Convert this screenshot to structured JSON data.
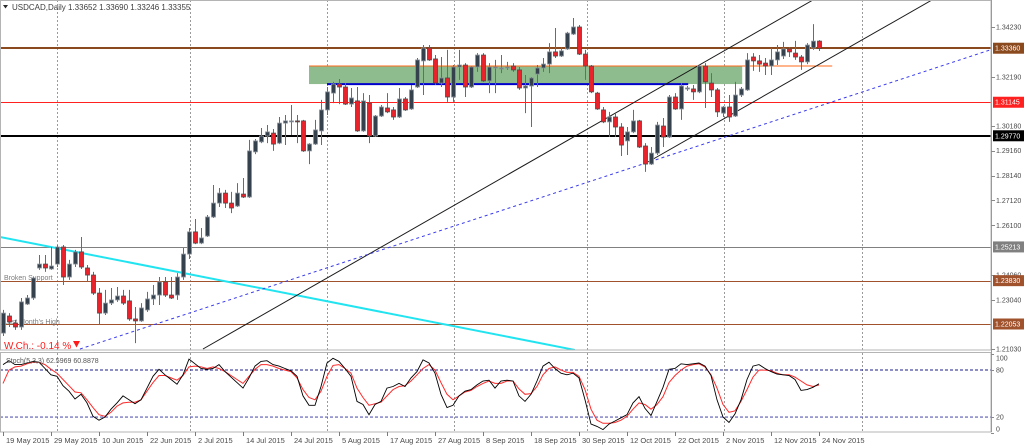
{
  "header": {
    "menu_icon": "triangle-down-icon",
    "symbol": "USDCAD,Daily",
    "ohlc": "1.33652 1.33690 1.33246 1.33355"
  },
  "annotations": {
    "broken_support": "Broken Support",
    "last_month_high": "Last Month's High",
    "weekly_change": "W.Ch.: -0.14 %",
    "weekly_change_icon": "triangle-down-icon"
  },
  "indicator": {
    "label": "Stoch(5,3,3) 62.5969 60.8878"
  },
  "colors": {
    "bull_body": "#36414e",
    "bull_outline": "#8a949e",
    "bear_body": "#e8232b",
    "bear_outline": "#4a4a4a",
    "wick": "#6b6b6b",
    "stoch_k": "#000000",
    "stoch_d": "#ff2a2a",
    "stoch_level_80": "#1c1c8c",
    "stoch_level_20": "#5a5ab4",
    "weekly_change": "#ff1a1a"
  },
  "chart_data": {
    "type": "candlestick",
    "title": "USDCAD,Daily",
    "symbol": "USDCAD",
    "timeframe": "Daily",
    "last_ohlc": {
      "open": 1.33652,
      "high": 1.3369,
      "low": 1.33246,
      "close": 1.33355
    },
    "ylim": [
      1.2099,
      1.3534
    ],
    "grid": "vertical dashed only",
    "x_tick_labels": [
      "19 May 2015",
      "29 May 2015",
      "10 Jun 2015",
      "22 Jun 2015",
      "2 Jul 2015",
      "14 Jul 2015",
      "24 Jul 2015",
      "5 Aug 2015",
      "17 Aug 2015",
      "27 Aug 2015",
      "8 Sep 2015",
      "18 Sep 2015",
      "30 Sep 2015",
      "12 Oct 2015",
      "22 Oct 2015",
      "2 Nov 2015",
      "12 Nov 2015",
      "24 Nov 2015"
    ],
    "y_tick_labels": [
      "1.34230",
      "1.32190",
      "1.30180",
      "1.29160",
      "1.28140",
      "1.27120",
      "1.26100",
      "1.24060",
      "1.23040",
      "1.21030"
    ],
    "candle_fields": [
      "open",
      "high",
      "low",
      "close"
    ],
    "candles": [
      [
        1.2168,
        1.2263,
        1.2156,
        1.225
      ],
      [
        1.2238,
        1.225,
        1.2193,
        1.2214
      ],
      [
        1.2209,
        1.2222,
        1.2181,
        1.2193
      ],
      [
        1.2193,
        1.2312,
        1.2181,
        1.2296
      ],
      [
        1.2287,
        1.2324,
        1.2283,
        1.2312
      ],
      [
        1.2312,
        1.2398,
        1.2304,
        1.2394
      ],
      [
        1.2435,
        1.2488,
        1.2427,
        1.2451
      ],
      [
        1.2451,
        1.2488,
        1.2419,
        1.2435
      ],
      [
        1.2431,
        1.2521,
        1.2427,
        1.2443
      ],
      [
        1.2451,
        1.2529,
        1.2439,
        1.2521
      ],
      [
        1.2521,
        1.2529,
        1.2365,
        1.2398
      ],
      [
        1.2398,
        1.2468,
        1.2386,
        1.2451
      ],
      [
        1.2451,
        1.2509,
        1.2439,
        1.2501
      ],
      [
        1.2501,
        1.2562,
        1.2431,
        1.2439
      ],
      [
        1.2435,
        1.2447,
        1.2378,
        1.2406
      ],
      [
        1.2406,
        1.2419,
        1.2324,
        1.2332
      ],
      [
        1.2332,
        1.2353,
        1.2201,
        1.225
      ],
      [
        1.225,
        1.2345,
        1.2242,
        1.2291
      ],
      [
        1.2291,
        1.2353,
        1.2283,
        1.2304
      ],
      [
        1.2304,
        1.2357,
        1.2296,
        1.232
      ],
      [
        1.232,
        1.2345,
        1.2283,
        1.2291
      ],
      [
        1.23,
        1.2345,
        1.2218,
        1.2226
      ],
      [
        1.2226,
        1.2275,
        1.2127,
        1.2218
      ],
      [
        1.2218,
        1.2291,
        1.2214,
        1.2271
      ],
      [
        1.2263,
        1.2337,
        1.2255,
        1.2308
      ],
      [
        1.2308,
        1.2365,
        1.2283,
        1.2324
      ],
      [
        1.2324,
        1.2398,
        1.2283,
        1.2378
      ],
      [
        1.2378,
        1.2398,
        1.2316,
        1.2324
      ],
      [
        1.2324,
        1.2398,
        1.2308,
        1.2312
      ],
      [
        1.2324,
        1.2414,
        1.2304,
        1.2398
      ],
      [
        1.2398,
        1.2517,
        1.2386,
        1.2492
      ],
      [
        1.2492,
        1.2599,
        1.2472,
        1.2583
      ],
      [
        1.2583,
        1.2636,
        1.2533,
        1.2537
      ],
      [
        1.2537,
        1.2599,
        1.2533,
        1.2558
      ],
      [
        1.2566,
        1.2652,
        1.2562,
        1.2644
      ],
      [
        1.2644,
        1.2775,
        1.264,
        1.2701
      ],
      [
        1.2701,
        1.2763,
        1.2685,
        1.2742
      ],
      [
        1.2742,
        1.2755,
        1.2681,
        1.2701
      ],
      [
        1.2701,
        1.2747,
        1.266,
        1.2681
      ],
      [
        1.2689,
        1.2783,
        1.2685,
        1.2742
      ],
      [
        1.2738,
        1.2804,
        1.2722,
        1.2726
      ],
      [
        1.2726,
        1.296,
        1.2722,
        1.2915
      ],
      [
        1.2911,
        1.2964,
        1.2902,
        1.2956
      ],
      [
        1.2952,
        1.3009,
        1.2947,
        1.2976
      ],
      [
        1.2976,
        1.3021,
        1.2947,
        1.2993
      ],
      [
        1.2988,
        1.3005,
        1.2915,
        1.2943
      ],
      [
        1.2947,
        1.3054,
        1.2943,
        1.3029
      ],
      [
        1.3029,
        1.3062,
        1.2939,
        1.3038
      ],
      [
        1.3034,
        1.3103,
        1.298,
        1.3038
      ],
      [
        1.3038,
        1.3062,
        1.2947,
        1.3034
      ],
      [
        1.3038,
        1.3042,
        1.2911,
        1.2915
      ],
      [
        1.2915,
        1.2947,
        1.2861,
        1.2943
      ],
      [
        1.2943,
        1.3042,
        1.2939,
        1.3001
      ],
      [
        1.2997,
        1.3124,
        1.2939,
        1.3083
      ],
      [
        1.3083,
        1.3177,
        1.3062,
        1.3157
      ],
      [
        1.3152,
        1.3198,
        1.3111,
        1.3189
      ],
      [
        1.3189,
        1.321,
        1.3107,
        1.3177
      ],
      [
        1.3177,
        1.3193,
        1.3103,
        1.3107
      ],
      [
        1.3107,
        1.3173,
        1.3095,
        1.3132
      ],
      [
        1.312,
        1.3177,
        1.2993,
        1.2997
      ],
      [
        1.2997,
        1.3152,
        1.2993,
        1.312
      ],
      [
        1.3111,
        1.3144,
        1.2947,
        1.2976
      ],
      [
        1.2976,
        1.3062,
        1.2972,
        1.3058
      ],
      [
        1.3058,
        1.3103,
        1.3054,
        1.3095
      ],
      [
        1.3091,
        1.3152,
        1.307,
        1.3075
      ],
      [
        1.3083,
        1.3095,
        1.3042,
        1.3054
      ],
      [
        1.3054,
        1.3173,
        1.305,
        1.3128
      ],
      [
        1.3128,
        1.3136,
        1.3079,
        1.3083
      ],
      [
        1.3087,
        1.3185,
        1.3083,
        1.3165
      ],
      [
        1.3177,
        1.3296,
        1.3173,
        1.3288
      ],
      [
        1.3284,
        1.3349,
        1.3144,
        1.3337
      ],
      [
        1.3337,
        1.3349,
        1.3284,
        1.3288
      ],
      [
        1.3292,
        1.3308,
        1.3185,
        1.3193
      ],
      [
        1.3193,
        1.33,
        1.3177,
        1.3214
      ],
      [
        1.3214,
        1.3329,
        1.3116,
        1.3136
      ],
      [
        1.3136,
        1.3267,
        1.3116,
        1.3259
      ],
      [
        1.3259,
        1.3329,
        1.3206,
        1.3267
      ],
      [
        1.3267,
        1.3275,
        1.3136,
        1.3177
      ],
      [
        1.3177,
        1.3263,
        1.3173,
        1.3259
      ],
      [
        1.3259,
        1.3316,
        1.3239,
        1.3308
      ],
      [
        1.3308,
        1.3316,
        1.3198,
        1.3202
      ],
      [
        1.3202,
        1.3275,
        1.3152,
        1.3259
      ],
      [
        1.3255,
        1.3288,
        1.3152,
        1.3259
      ],
      [
        1.3255,
        1.3308,
        1.3234,
        1.3255
      ],
      [
        1.3255,
        1.328,
        1.3247,
        1.3259
      ],
      [
        1.3263,
        1.3275,
        1.3239,
        1.3247
      ],
      [
        1.3247,
        1.3259,
        1.3165,
        1.3173
      ],
      [
        1.3173,
        1.3226,
        1.307,
        1.3181
      ],
      [
        1.3181,
        1.3218,
        1.3013,
        1.3214
      ],
      [
        1.323,
        1.3267,
        1.3177,
        1.3255
      ],
      [
        1.3255,
        1.3296,
        1.3239,
        1.3271
      ],
      [
        1.3271,
        1.3357,
        1.3234,
        1.3321
      ],
      [
        1.3321,
        1.3419,
        1.3296,
        1.3304
      ],
      [
        1.3304,
        1.3341,
        1.33,
        1.3325
      ],
      [
        1.3333,
        1.3403,
        1.3329,
        1.3398
      ],
      [
        1.3394,
        1.346,
        1.339,
        1.3423
      ],
      [
        1.3423,
        1.3431,
        1.3308,
        1.3312
      ],
      [
        1.3312,
        1.3329,
        1.3206,
        1.3263
      ],
      [
        1.3263,
        1.3267,
        1.3152,
        1.3157
      ],
      [
        1.3152,
        1.3157,
        1.3083,
        1.3087
      ],
      [
        1.3083,
        1.3095,
        1.3029,
        1.3034
      ],
      [
        1.3034,
        1.3075,
        1.2972,
        1.3054
      ],
      [
        1.3054,
        1.307,
        1.2972,
        1.3013
      ],
      [
        1.3013,
        1.3029,
        1.2894,
        1.2939
      ],
      [
        1.2956,
        1.3013,
        1.2898,
        1.2993
      ],
      [
        1.2993,
        1.3083,
        1.2988,
        1.3038
      ],
      [
        1.3038,
        1.3042,
        1.2927,
        1.2931
      ],
      [
        1.2935,
        1.2947,
        1.2829,
        1.2861
      ],
      [
        1.2861,
        1.2931,
        1.2857,
        1.2906
      ],
      [
        1.2906,
        1.3034,
        1.2898,
        1.3021
      ],
      [
        1.3017,
        1.305,
        1.2931,
        1.2972
      ],
      [
        1.2972,
        1.3144,
        1.2968,
        1.3136
      ],
      [
        1.3136,
        1.3152,
        1.3083,
        1.3087
      ],
      [
        1.3087,
        1.3193,
        1.3042,
        1.3181
      ],
      [
        1.3173,
        1.3181,
        1.3161,
        1.3173
      ],
      [
        1.3169,
        1.3185,
        1.3124,
        1.3157
      ],
      [
        1.3157,
        1.3271,
        1.3152,
        1.3263
      ],
      [
        1.3263,
        1.3275,
        1.3091,
        1.3198
      ],
      [
        1.3193,
        1.3234,
        1.3136,
        1.3165
      ],
      [
        1.3165,
        1.3173,
        1.3054,
        1.3075
      ],
      [
        1.307,
        1.3099,
        1.3054,
        1.3095
      ],
      [
        1.3095,
        1.3144,
        1.3034,
        1.3054
      ],
      [
        1.3058,
        1.3198,
        1.3054,
        1.3144
      ],
      [
        1.3144,
        1.3177,
        1.3136,
        1.3169
      ],
      [
        1.3165,
        1.3316,
        1.3161,
        1.3288
      ],
      [
        1.33,
        1.3316,
        1.3243,
        1.3284
      ],
      [
        1.3284,
        1.3308,
        1.3239,
        1.3271
      ],
      [
        1.3275,
        1.3296,
        1.3226,
        1.3263
      ],
      [
        1.3263,
        1.3337,
        1.3226,
        1.3288
      ],
      [
        1.3288,
        1.3349,
        1.3267,
        1.3321
      ],
      [
        1.3304,
        1.3362,
        1.3292,
        1.3333
      ],
      [
        1.3333,
        1.3341,
        1.33,
        1.3321
      ],
      [
        1.3316,
        1.3366,
        1.3288,
        1.33
      ],
      [
        1.33,
        1.3308,
        1.3247,
        1.328
      ],
      [
        1.328,
        1.3357,
        1.3271,
        1.3349
      ],
      [
        1.3337,
        1.3435,
        1.3329,
        1.3365
      ],
      [
        1.33652,
        1.3369,
        1.33246,
        1.33355
      ]
    ],
    "horizontal_lines": [
      {
        "price": 1.3336,
        "label": "1.33360",
        "color": "#8b4a1e",
        "width": 2
      },
      {
        "price": 1.31145,
        "label": "1.31145",
        "color": "#ff2020",
        "width": 1
      },
      {
        "price": 1.2977,
        "label": "1.29770",
        "color": "#000000",
        "width": 2
      },
      {
        "price": 1.25213,
        "label": "1.25213",
        "color": "#808080",
        "width": 1
      },
      {
        "price": 1.2383,
        "label": "1.23830",
        "color": "#a0522d",
        "width": 1,
        "annotation": "Broken Support"
      },
      {
        "price": 1.22053,
        "label": "1.22053",
        "color": "#a0522d",
        "width": 1,
        "annotation": "Last Month's High"
      }
    ],
    "zone": {
      "from_index": 51,
      "to_index": 123.2,
      "price_low": 1.3189,
      "price_high": 1.3263,
      "color": "#8fbc8f"
    },
    "segments": [
      {
        "name": "zone-top-line",
        "i1": 51,
        "p1": 1.3263,
        "i2": 138.2,
        "p2": 1.3263,
        "color": "#ff6a1a",
        "width": 1,
        "dashed": false
      },
      {
        "name": "zone-bottom-line",
        "i1": 54,
        "p1": 1.3189,
        "i2": 114.2,
        "p2": 1.3189,
        "color": "#0000cc",
        "width": 2,
        "dashed": false
      },
      {
        "name": "cyan-trendline",
        "i1": -0.5,
        "p1": 1.2562,
        "i2": 95.3,
        "p2": 1.2099,
        "color": "#22e4f0",
        "width": 2,
        "dashed": false
      },
      {
        "name": "channel-upper-line",
        "i1": 33.33,
        "p1": 1.21028,
        "i2": 135.0,
        "p2": 1.35337,
        "color": "#1a1a1a",
        "width": 1,
        "dashed": false
      },
      {
        "name": "channel-lower-line",
        "i1": 107.5,
        "p1": 1.28695,
        "i2": 154.83,
        "p2": 1.35337,
        "color": "#1a1a1a",
        "width": 1,
        "dashed": false
      },
      {
        "name": "dashed-support-trendline",
        "i1": 12.83,
        "p1": 1.21028,
        "i2": 164.5,
        "p2": 1.33287,
        "color": "#3a3af0",
        "width": 1,
        "dashed": true
      }
    ],
    "indicator": {
      "name": "Stochastic",
      "params": [
        5,
        3,
        3
      ],
      "k_last": 62.5969,
      "d_last": 60.8878,
      "levels": [
        80,
        20
      ],
      "axis_labels": [
        "100",
        "80",
        "20",
        "0"
      ],
      "k": [
        87,
        92,
        87,
        87,
        89,
        91,
        90,
        82,
        74,
        72,
        60,
        53,
        43,
        49,
        38,
        21,
        16,
        20,
        30,
        38,
        47,
        42,
        37,
        42,
        57,
        72,
        81,
        74,
        68,
        62,
        74,
        94,
        88,
        82,
        81,
        82,
        87,
        78,
        71,
        64,
        57,
        70,
        85,
        91,
        92,
        87,
        85,
        82,
        79,
        72,
        47,
        35,
        35,
        59,
        89,
        95,
        91,
        82,
        72,
        40,
        36,
        23,
        36,
        40,
        57,
        59,
        63,
        59,
        70,
        78,
        93,
        89,
        76,
        49,
        32,
        35,
        47,
        53,
        55,
        61,
        66,
        67,
        57,
        66,
        67,
        66,
        47,
        40,
        49,
        66,
        85,
        90,
        82,
        76,
        74,
        76,
        70,
        42,
        11,
        8,
        4,
        11,
        15,
        19,
        23,
        38,
        46,
        31,
        22,
        40,
        58,
        81,
        82,
        88,
        87,
        88,
        89,
        85,
        73,
        42,
        20,
        13,
        24,
        42,
        68,
        85,
        87,
        82,
        78,
        75,
        74,
        73,
        68,
        54,
        55,
        58,
        62.5969
      ],
      "d": [
        63,
        80,
        84,
        85,
        88,
        90,
        90,
        87,
        81,
        76,
        68,
        60,
        52,
        51,
        42,
        32,
        23,
        21,
        26,
        34,
        38,
        39,
        39,
        42,
        53,
        64,
        73,
        73,
        70,
        67,
        73,
        84,
        85,
        84,
        82,
        84,
        82,
        78,
        73,
        68,
        63,
        72,
        81,
        87,
        87,
        85,
        82,
        80,
        78,
        70,
        55,
        45,
        42,
        53,
        72,
        86,
        87,
        82,
        76,
        57,
        45,
        35,
        37,
        39,
        47,
        55,
        59,
        60,
        66,
        74,
        82,
        87,
        80,
        64,
        49,
        42,
        47,
        52,
        54,
        59,
        63,
        66,
        63,
        63,
        66,
        66,
        56,
        49,
        50,
        59,
        74,
        82,
        84,
        80,
        77,
        77,
        72,
        55,
        30,
        16,
        12,
        12,
        13,
        16,
        21,
        30,
        38,
        36,
        30,
        36,
        46,
        64,
        73,
        80,
        85,
        87,
        88,
        84,
        74,
        57,
        36,
        26,
        28,
        40,
        55,
        71,
        80,
        80,
        79,
        76,
        74,
        74,
        71,
        66,
        61,
        59,
        60.8878
      ]
    }
  }
}
